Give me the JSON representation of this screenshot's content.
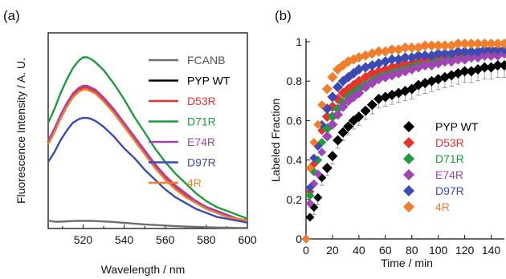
{
  "chart_data": [
    {
      "panel_label": "(a)",
      "type": "line",
      "xlabel": "Wavelength / nm",
      "ylabel": "Fluorescence Intensity / A. U.",
      "xlim": [
        503,
        600
      ],
      "xticks": [
        520,
        540,
        560,
        580,
        600
      ],
      "y_tick_labels_shown": false,
      "legend_placement": "right",
      "x": [
        503,
        506,
        509,
        512,
        515,
        518,
        520,
        522,
        524,
        526,
        530,
        535,
        540,
        545,
        550,
        555,
        560,
        565,
        570,
        575,
        580,
        585,
        590,
        595,
        600
      ],
      "series": [
        {
          "name": "FCANB",
          "color": "#6e6e6e",
          "values": [
            0.04,
            0.035,
            0.035,
            0.037,
            0.038,
            0.039,
            0.039,
            0.039,
            0.039,
            0.038,
            0.036,
            0.033,
            0.029,
            0.025,
            0.021,
            0.018,
            0.015,
            0.012,
            0.01,
            0.008,
            0.006,
            0.005,
            0.004,
            0.003,
            0.003
          ]
        },
        {
          "name": "PYP WT",
          "color": "#000000",
          "values": [
            0.44,
            0.5,
            0.57,
            0.63,
            0.68,
            0.71,
            0.72,
            0.72,
            0.71,
            0.7,
            0.66,
            0.6,
            0.53,
            0.46,
            0.39,
            0.32,
            0.26,
            0.21,
            0.17,
            0.14,
            0.11,
            0.09,
            0.07,
            0.05,
            0.04
          ]
        },
        {
          "name": "D53R",
          "color": "#e8322e",
          "values": [
            0.44,
            0.5,
            0.57,
            0.63,
            0.68,
            0.71,
            0.72,
            0.72,
            0.71,
            0.7,
            0.66,
            0.6,
            0.53,
            0.46,
            0.39,
            0.32,
            0.26,
            0.21,
            0.17,
            0.14,
            0.11,
            0.09,
            0.07,
            0.05,
            0.04
          ]
        },
        {
          "name": "D71R",
          "color": "#1f9a3c",
          "values": [
            0.54,
            0.61,
            0.69,
            0.76,
            0.82,
            0.86,
            0.875,
            0.875,
            0.865,
            0.85,
            0.81,
            0.74,
            0.66,
            0.57,
            0.49,
            0.41,
            0.34,
            0.28,
            0.23,
            0.18,
            0.14,
            0.11,
            0.09,
            0.07,
            0.05
          ]
        },
        {
          "name": "E74R",
          "color": "#a046b4",
          "values": [
            0.45,
            0.51,
            0.58,
            0.64,
            0.69,
            0.72,
            0.73,
            0.73,
            0.72,
            0.71,
            0.67,
            0.61,
            0.54,
            0.47,
            0.4,
            0.33,
            0.27,
            0.22,
            0.18,
            0.14,
            0.11,
            0.09,
            0.07,
            0.05,
            0.04
          ]
        },
        {
          "name": "D97R",
          "color": "#3c4bb4",
          "values": [
            0.34,
            0.39,
            0.45,
            0.5,
            0.54,
            0.56,
            0.565,
            0.565,
            0.56,
            0.55,
            0.52,
            0.47,
            0.41,
            0.36,
            0.3,
            0.25,
            0.2,
            0.16,
            0.13,
            0.1,
            0.08,
            0.06,
            0.05,
            0.04,
            0.03
          ]
        },
        {
          "name": "4R",
          "color": "#f27d2c",
          "values": [
            0.43,
            0.49,
            0.56,
            0.62,
            0.67,
            0.7,
            0.71,
            0.71,
            0.7,
            0.69,
            0.65,
            0.59,
            0.52,
            0.45,
            0.38,
            0.31,
            0.25,
            0.2,
            0.16,
            0.13,
            0.1,
            0.08,
            0.06,
            0.05,
            0.04
          ]
        }
      ]
    },
    {
      "panel_label": "(b)",
      "type": "scatter",
      "xlabel": "Time / min",
      "ylabel": "Labeled Fraction",
      "xlim": [
        0,
        150
      ],
      "ylim": [
        0,
        1
      ],
      "xticks": [
        0,
        20,
        40,
        60,
        80,
        100,
        120,
        140
      ],
      "yticks": [
        0,
        0.2,
        0.4,
        0.6,
        0.8,
        1
      ],
      "marker": "diamond",
      "error_bars": true,
      "legend_placement": "right",
      "x": [
        0,
        3,
        6,
        9,
        12,
        16,
        20,
        24,
        28,
        32,
        36,
        40,
        45,
        50,
        55,
        60,
        65,
        70,
        75,
        80,
        85,
        90,
        95,
        100,
        105,
        110,
        115,
        120,
        125,
        130,
        135,
        140,
        145,
        150
      ],
      "series": [
        {
          "name": "PYP WT",
          "color": "#000000",
          "values": [
            0.0,
            0.11,
            0.16,
            0.21,
            0.31,
            0.36,
            0.42,
            0.5,
            0.54,
            0.57,
            0.6,
            0.62,
            0.65,
            0.68,
            0.71,
            0.72,
            0.73,
            0.74,
            0.75,
            0.76,
            0.78,
            0.79,
            0.8,
            0.81,
            0.82,
            0.83,
            0.84,
            0.85,
            0.85,
            0.86,
            0.87,
            0.87,
            0.88,
            0.88
          ]
        },
        {
          "name": "D53R",
          "color": "#e8322e",
          "values": [
            0.0,
            0.24,
            0.38,
            0.47,
            0.55,
            0.62,
            0.67,
            0.71,
            0.74,
            0.76,
            0.78,
            0.8,
            0.82,
            0.84,
            0.85,
            0.86,
            0.87,
            0.88,
            0.89,
            0.89,
            0.9,
            0.91,
            0.91,
            0.92,
            0.92,
            0.93,
            0.93,
            0.94,
            0.94,
            0.94,
            0.95,
            0.95,
            0.95,
            0.95
          ]
        },
        {
          "name": "D71R",
          "color": "#1f9a3c",
          "values": [
            0.0,
            0.22,
            0.34,
            0.4,
            0.49,
            0.56,
            0.62,
            0.66,
            0.69,
            0.72,
            0.74,
            0.76,
            0.78,
            0.8,
            0.82,
            0.83,
            0.84,
            0.85,
            0.86,
            0.87,
            0.88,
            0.88,
            0.89,
            0.9,
            0.9,
            0.91,
            0.91,
            0.92,
            0.92,
            0.93,
            0.93,
            0.93,
            0.94,
            0.94
          ]
        },
        {
          "name": "E74R",
          "color": "#a046b4",
          "values": [
            0.0,
            0.18,
            0.28,
            0.33,
            0.44,
            0.52,
            0.58,
            0.63,
            0.67,
            0.7,
            0.72,
            0.74,
            0.77,
            0.79,
            0.81,
            0.82,
            0.83,
            0.84,
            0.85,
            0.86,
            0.87,
            0.88,
            0.88,
            0.89,
            0.9,
            0.9,
            0.91,
            0.91,
            0.92,
            0.92,
            0.93,
            0.93,
            0.93,
            0.94
          ]
        },
        {
          "name": "D97R",
          "color": "#3c4bb4",
          "values": [
            0.0,
            0.26,
            0.41,
            0.47,
            0.58,
            0.66,
            0.72,
            0.77,
            0.8,
            0.82,
            0.84,
            0.86,
            0.87,
            0.88,
            0.89,
            0.9,
            0.91,
            0.91,
            0.92,
            0.92,
            0.93,
            0.93,
            0.93,
            0.94,
            0.94,
            0.94,
            0.95,
            0.95,
            0.95,
            0.95,
            0.96,
            0.96,
            0.96,
            0.96
          ]
        },
        {
          "name": "4R",
          "color": "#f27d2c",
          "values": [
            0.0,
            0.36,
            0.49,
            0.58,
            0.68,
            0.76,
            0.82,
            0.86,
            0.88,
            0.9,
            0.91,
            0.92,
            0.93,
            0.94,
            0.95,
            0.95,
            0.96,
            0.96,
            0.97,
            0.97,
            0.97,
            0.98,
            0.98,
            0.98,
            0.98,
            0.98,
            0.99,
            0.99,
            0.99,
            0.99,
            0.99,
            0.99,
            0.99,
            0.99
          ]
        }
      ]
    }
  ]
}
